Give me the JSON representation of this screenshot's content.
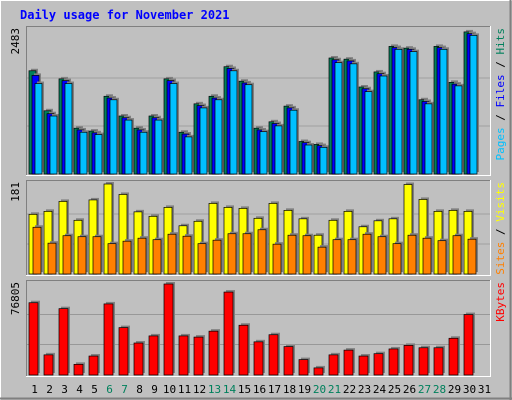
{
  "title": "Daily usage for November 2021",
  "colors": {
    "background": "#c0c0c0",
    "panel": "#c0c0c0",
    "hits": "#00805c",
    "files": "#0000ff",
    "pages": "#00c0ff",
    "visits": "#ffff00",
    "sites": "#ff8000",
    "kbytes": "#ff0000",
    "title": "#0000ff",
    "weekend": "#00805c",
    "weekday": "#000000"
  },
  "chart_data": [
    {
      "type": "bar",
      "panel": "top",
      "ymax_label": "2483",
      "ylim": [
        0,
        2483
      ],
      "legend_parts": [
        {
          "text": "Pages",
          "color": "#00c0ff"
        },
        {
          "text": " / ",
          "color": "#000000"
        },
        {
          "text": "Files",
          "color": "#0000ff"
        },
        {
          "text": " / ",
          "color": "#000000"
        },
        {
          "text": "Hits",
          "color": "#00805c"
        }
      ],
      "categories": [
        "1",
        "2",
        "3",
        "4",
        "5",
        "6",
        "7",
        "8",
        "9",
        "10",
        "11",
        "12",
        "13",
        "14",
        "15",
        "16",
        "17",
        "18",
        "19",
        "20",
        "21",
        "22",
        "23",
        "24",
        "25",
        "26",
        "27",
        "28",
        "29",
        "30",
        "31"
      ],
      "series": [
        {
          "name": "Hits",
          "values": [
            1780,
            1090,
            1640,
            790,
            740,
            1340,
            1000,
            790,
            1000,
            1640,
            720,
            1210,
            1340,
            1850,
            1600,
            790,
            900,
            1170,
            560,
            510,
            2000,
            1980,
            1500,
            1760,
            2200,
            2170,
            1280,
            2200,
            1580,
            2450,
            0
          ]
        },
        {
          "name": "Files",
          "values": [
            1700,
            1040,
            1610,
            760,
            710,
            1310,
            970,
            760,
            970,
            1610,
            690,
            1180,
            1310,
            1820,
            1570,
            760,
            870,
            1140,
            540,
            490,
            1970,
            1950,
            1470,
            1730,
            2180,
            2150,
            1250,
            2180,
            1550,
            2420,
            0
          ]
        },
        {
          "name": "Pages",
          "values": [
            1560,
            1000,
            1560,
            720,
            680,
            1280,
            930,
            720,
            930,
            1560,
            640,
            1140,
            1280,
            1780,
            1540,
            730,
            830,
            1100,
            500,
            460,
            1920,
            1900,
            1420,
            1690,
            2150,
            2110,
            1210,
            2150,
            1520,
            2390,
            0
          ]
        }
      ]
    },
    {
      "type": "bar",
      "panel": "middle",
      "ymax_label": "181",
      "ylim": [
        0,
        181
      ],
      "legend_parts": [
        {
          "text": "Sites",
          "color": "#ff8000"
        },
        {
          "text": " / ",
          "color": "#000000"
        },
        {
          "text": "Visits",
          "color": "#ffff00"
        }
      ],
      "categories": [
        "1",
        "2",
        "3",
        "4",
        "5",
        "6",
        "7",
        "8",
        "9",
        "10",
        "11",
        "12",
        "13",
        "14",
        "15",
        "16",
        "17",
        "18",
        "19",
        "20",
        "21",
        "22",
        "23",
        "24",
        "25",
        "26",
        "27",
        "28",
        "29",
        "30",
        "31"
      ],
      "series": [
        {
          "name": "Visits",
          "values": [
            120,
            126,
            146,
            108,
            149,
            181,
            160,
            125,
            116,
            134,
            97,
            106,
            142,
            134,
            132,
            112,
            142,
            128,
            111,
            78,
            108,
            126,
            95,
            107,
            111,
            180,
            150,
            126,
            128,
            126,
            0
          ]
        },
        {
          "name": "Sites",
          "values": [
            94,
            62,
            77,
            75,
            75,
            61,
            66,
            72,
            69,
            80,
            76,
            61,
            68,
            81,
            81,
            89,
            60,
            78,
            77,
            54,
            69,
            69,
            80,
            75,
            61,
            78,
            72,
            67,
            77,
            70,
            0
          ]
        }
      ]
    },
    {
      "type": "bar",
      "panel": "bottom",
      "ymax_label": "76805",
      "ylim": [
        0,
        76805
      ],
      "legend_parts": [
        {
          "text": "KBytes",
          "color": "#ff0000"
        }
      ],
      "categories": [
        "1",
        "2",
        "3",
        "4",
        "5",
        "6",
        "7",
        "8",
        "9",
        "10",
        "11",
        "12",
        "13",
        "14",
        "15",
        "16",
        "17",
        "18",
        "19",
        "20",
        "21",
        "22",
        "23",
        "24",
        "25",
        "26",
        "27",
        "28",
        "29",
        "30",
        "31"
      ],
      "series": [
        {
          "name": "KBytes",
          "values": [
            61000,
            17000,
            56000,
            9000,
            16000,
            60000,
            40000,
            27000,
            33000,
            76805,
            33000,
            32000,
            37000,
            70000,
            42000,
            28000,
            34000,
            24000,
            13000,
            6000,
            17000,
            21000,
            16000,
            18000,
            22000,
            25000,
            23000,
            23000,
            31000,
            51000,
            0
          ]
        }
      ]
    }
  ],
  "x_labels": [
    {
      "text": "1",
      "weekend": false
    },
    {
      "text": "2",
      "weekend": false
    },
    {
      "text": "3",
      "weekend": false
    },
    {
      "text": "4",
      "weekend": false
    },
    {
      "text": "5",
      "weekend": false
    },
    {
      "text": "6",
      "weekend": true
    },
    {
      "text": "7",
      "weekend": true
    },
    {
      "text": "8",
      "weekend": false
    },
    {
      "text": "9",
      "weekend": false
    },
    {
      "text": "10",
      "weekend": false
    },
    {
      "text": "11",
      "weekend": false
    },
    {
      "text": "12",
      "weekend": false
    },
    {
      "text": "13",
      "weekend": true
    },
    {
      "text": "14",
      "weekend": true
    },
    {
      "text": "15",
      "weekend": false
    },
    {
      "text": "16",
      "weekend": false
    },
    {
      "text": "17",
      "weekend": false
    },
    {
      "text": "18",
      "weekend": false
    },
    {
      "text": "19",
      "weekend": false
    },
    {
      "text": "20",
      "weekend": true
    },
    {
      "text": "21",
      "weekend": true
    },
    {
      "text": "22",
      "weekend": false
    },
    {
      "text": "23",
      "weekend": false
    },
    {
      "text": "24",
      "weekend": false
    },
    {
      "text": "25",
      "weekend": false
    },
    {
      "text": "26",
      "weekend": false
    },
    {
      "text": "27",
      "weekend": true
    },
    {
      "text": "28",
      "weekend": true
    },
    {
      "text": "29",
      "weekend": false
    },
    {
      "text": "30",
      "weekend": false
    },
    {
      "text": "31",
      "weekend": false
    }
  ]
}
